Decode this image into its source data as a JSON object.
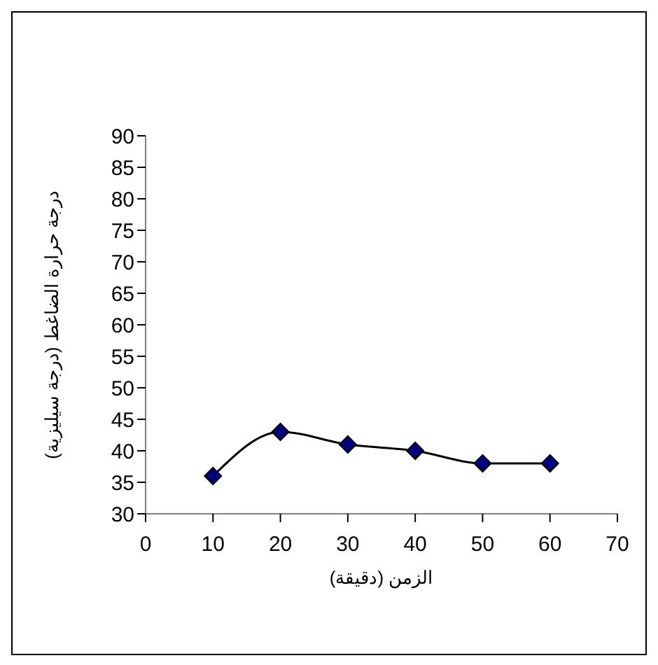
{
  "chart_data": {
    "type": "line",
    "xlabel": "الزمن (دقيقة)",
    "ylabel": "درجة حرارة الضاغط (درجة سيليزية)",
    "x": [
      10,
      20,
      30,
      40,
      50,
      60
    ],
    "series": [
      {
        "color": "#000080",
        "values": [
          36,
          43,
          41,
          40,
          38,
          38
        ]
      }
    ],
    "xlim": [
      0,
      70
    ],
    "xticks": [
      0,
      10,
      20,
      30,
      40,
      50,
      60,
      70
    ],
    "ylim": [
      30,
      90
    ],
    "yticks": [
      30,
      35,
      40,
      45,
      50,
      55,
      60,
      65,
      70,
      75,
      80,
      85,
      90
    ],
    "grid": false,
    "legend": false,
    "marker": "diamond",
    "line_style": "solid"
  }
}
